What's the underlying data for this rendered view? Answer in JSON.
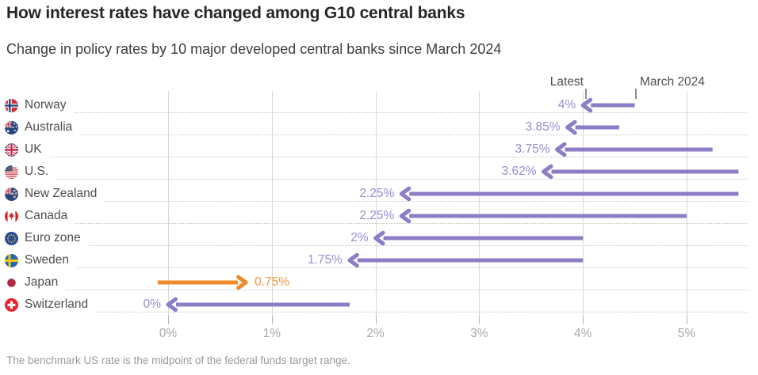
{
  "header": {
    "title": "How interest rates have changed among G10 central banks",
    "subtitle": "Change in policy rates by 10 major developed central banks since March 2024"
  },
  "chart_data": {
    "type": "arrow-dumbbell",
    "title": "How interest rates have changed among G10 central banks",
    "subtitle": "Change in policy rates by 10 major developed central banks since March 2024",
    "pointer_labels": {
      "latest": "Latest",
      "march": "March 2024"
    },
    "x_axis": {
      "tick_labels": [
        "0%",
        "1%",
        "2%",
        "3%",
        "4%",
        "5%"
      ],
      "tick_values": [
        0,
        1,
        2,
        3,
        4,
        5
      ],
      "min": 0,
      "max_visible": 5.65,
      "grid": "vertical-solid, per-row dotted leaders"
    },
    "rows": [
      {
        "country": "Norway",
        "flag": "norway",
        "march_2024": 4.5,
        "latest": 4.0,
        "latest_label": "4%",
        "change": "cut"
      },
      {
        "country": "Australia",
        "flag": "australia",
        "march_2024": 4.35,
        "latest": 3.85,
        "latest_label": "3.85%",
        "change": "cut"
      },
      {
        "country": "UK",
        "flag": "uk",
        "march_2024": 5.25,
        "latest": 3.75,
        "latest_label": "3.75%",
        "change": "cut"
      },
      {
        "country": "U.S.",
        "flag": "us",
        "march_2024": 5.5,
        "latest": 3.62,
        "latest_label": "3.62%",
        "change": "cut"
      },
      {
        "country": "New Zealand",
        "flag": "new-zealand",
        "march_2024": 5.5,
        "latest": 2.25,
        "latest_label": "2.25%",
        "change": "cut"
      },
      {
        "country": "Canada",
        "flag": "canada",
        "march_2024": 5.0,
        "latest": 2.25,
        "latest_label": "2.25%",
        "change": "cut"
      },
      {
        "country": "Euro zone",
        "flag": "euro-zone",
        "march_2024": 4.0,
        "latest": 2.0,
        "latest_label": "2%",
        "change": "cut"
      },
      {
        "country": "Sweden",
        "flag": "sweden",
        "march_2024": 4.0,
        "latest": 1.75,
        "latest_label": "1.75%",
        "change": "cut"
      },
      {
        "country": "Japan",
        "flag": "japan",
        "march_2024": -0.1,
        "latest": 0.75,
        "latest_label": "0.75%",
        "change": "hike"
      },
      {
        "country": "Switzerland",
        "flag": "switzerland",
        "march_2024": 1.75,
        "latest": 0.0,
        "latest_label": "0%",
        "change": "cut"
      }
    ],
    "colors": {
      "cut_arrow": "#8d7cc6",
      "cut_label": "#9a8cd2",
      "hike_arrow": "#ef8b28",
      "hike_label": "#f2973c"
    }
  },
  "footer": {
    "note": "The benchmark US rate is the midpoint of the federal funds target range."
  }
}
